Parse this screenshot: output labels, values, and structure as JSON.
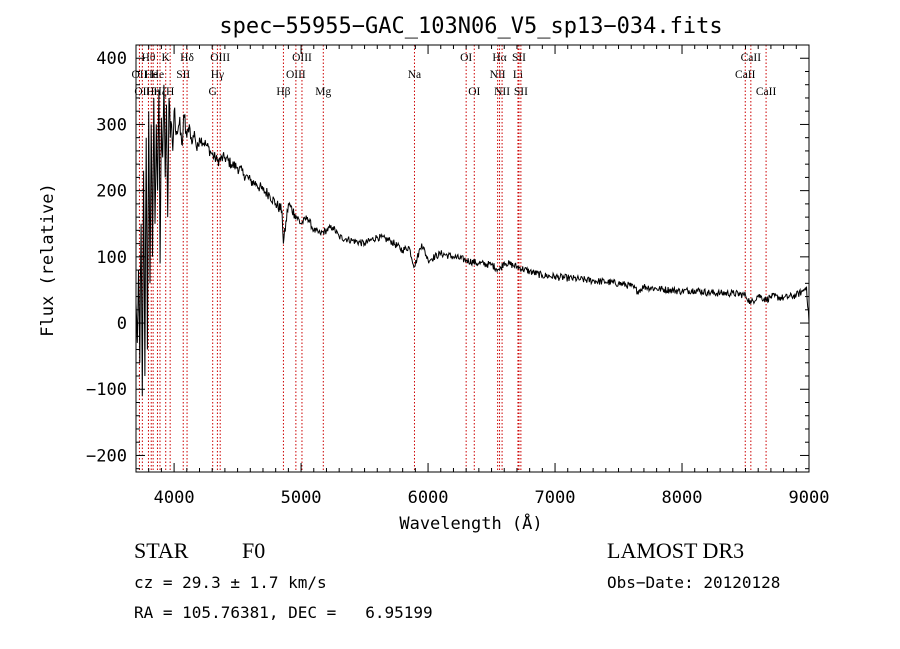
{
  "chart_data": {
    "type": "line",
    "title": "spec−55955−GAC_103N06_V5_sp13−034.fits",
    "xlabel": "Wavelength (Å)",
    "ylabel": "Flux (relative)",
    "xlim": [
      3700,
      9000
    ],
    "ylim": [
      -225,
      420
    ],
    "xticks": [
      {
        "value": 4000,
        "label": "4000"
      },
      {
        "value": 5000,
        "label": "5000"
      },
      {
        "value": 6000,
        "label": "6000"
      },
      {
        "value": 7000,
        "label": "7000"
      },
      {
        "value": 8000,
        "label": "8000"
      },
      {
        "value": 9000,
        "label": "9000"
      }
    ],
    "yticks": [
      {
        "value": -200,
        "label": "−200"
      },
      {
        "value": -100,
        "label": "−100"
      },
      {
        "value": 0,
        "label": "0"
      },
      {
        "value": 100,
        "label": "100"
      },
      {
        "value": 200,
        "label": "200"
      },
      {
        "value": 300,
        "label": "300"
      },
      {
        "value": 400,
        "label": "400"
      }
    ],
    "series": [
      {
        "name": "flux",
        "x": [
          3700,
          3710,
          3720,
          3730,
          3740,
          3750,
          3760,
          3770,
          3780,
          3790,
          3800,
          3810,
          3820,
          3830,
          3840,
          3850,
          3860,
          3870,
          3880,
          3890,
          3900,
          3910,
          3920,
          3930,
          3940,
          3950,
          3960,
          3970,
          3980,
          3990,
          4000,
          4020,
          4040,
          4060,
          4080,
          4100,
          4120,
          4140,
          4160,
          4180,
          4200,
          4250,
          4300,
          4340,
          4400,
          4450,
          4500,
          4550,
          4600,
          4650,
          4700,
          4750,
          4800,
          4850,
          4861,
          4900,
          4950,
          5000,
          5050,
          5100,
          5150,
          5200,
          5250,
          5300,
          5400,
          5500,
          5600,
          5700,
          5800,
          5850,
          5893,
          5950,
          6000,
          6100,
          6200,
          6300,
          6400,
          6500,
          6563,
          6600,
          6700,
          6800,
          6900,
          7000,
          7100,
          7200,
          7300,
          7400,
          7500,
          7600,
          7650,
          7700,
          7800,
          7900,
          8000,
          8100,
          8200,
          8300,
          8400,
          8500,
          8542,
          8600,
          8662,
          8700,
          8800,
          8900,
          8950,
          8980,
          9000
        ],
        "y": [
          30,
          -30,
          80,
          -60,
          150,
          -110,
          230,
          -80,
          280,
          -40,
          320,
          60,
          300,
          100,
          340,
          150,
          300,
          200,
          350,
          90,
          310,
          250,
          360,
          220,
          330,
          160,
          340,
          280,
          300,
          260,
          320,
          290,
          300,
          270,
          310,
          280,
          300,
          270,
          290,
          260,
          280,
          270,
          255,
          245,
          250,
          240,
          235,
          225,
          215,
          210,
          200,
          195,
          180,
          170,
          120,
          180,
          165,
          150,
          160,
          140,
          135,
          140,
          145,
          130,
          125,
          120,
          130,
          125,
          110,
          115,
          85,
          120,
          95,
          105,
          100,
          95,
          90,
          88,
          80,
          92,
          85,
          78,
          72,
          70,
          68,
          66,
          64,
          62,
          60,
          56,
          48,
          55,
          52,
          50,
          48,
          50,
          46,
          45,
          45,
          42,
          30,
          42,
          35,
          40,
          38,
          42,
          48,
          55,
          0
        ]
      }
    ],
    "lines": [
      {
        "wl": 3727,
        "label": "OII",
        "row": 2
      },
      {
        "wl": 3750,
        "label": "OII",
        "row": 3
      },
      {
        "wl": 3798,
        "label": "Hθ",
        "row": 1
      },
      {
        "wl": 3820,
        "label": "He",
        "row": 2
      },
      {
        "wl": 3835,
        "label": "Hη",
        "row": 3
      },
      {
        "wl": 3869,
        "label": "He",
        "row": 2
      },
      {
        "wl": 3889,
        "label": "Hζ",
        "row": 3
      },
      {
        "wl": 3934,
        "label": "K",
        "row": 1
      },
      {
        "wl": 3969,
        "label": "H",
        "row": 3
      },
      {
        "wl": 4072,
        "label": "SII",
        "row": 2
      },
      {
        "wl": 4102,
        "label": "Hδ",
        "row": 1
      },
      {
        "wl": 4304,
        "label": "G",
        "row": 3
      },
      {
        "wl": 4341,
        "label": "Hγ",
        "row": 2
      },
      {
        "wl": 4363,
        "label": "OIII",
        "row": 1
      },
      {
        "wl": 4861,
        "label": "Hβ",
        "row": 3
      },
      {
        "wl": 4959,
        "label": "OIII",
        "row": 2
      },
      {
        "wl": 5007,
        "label": "OIII",
        "row": 1
      },
      {
        "wl": 5175,
        "label": "Mg",
        "row": 3
      },
      {
        "wl": 5893,
        "label": "Na",
        "row": 2
      },
      {
        "wl": 6300,
        "label": "OI",
        "row": 1
      },
      {
        "wl": 6364,
        "label": "OI",
        "row": 3
      },
      {
        "wl": 6548,
        "label": "NII",
        "row": 2
      },
      {
        "wl": 6563,
        "label": "Hα",
        "row": 1
      },
      {
        "wl": 6583,
        "label": "NII",
        "row": 3
      },
      {
        "wl": 6708,
        "label": "Li",
        "row": 2
      },
      {
        "wl": 6716,
        "label": "SII",
        "row": 1
      },
      {
        "wl": 6731,
        "label": "SII",
        "row": 3
      },
      {
        "wl": 8498,
        "label": "CaII",
        "row": 2
      },
      {
        "wl": 8542,
        "label": "CaII",
        "row": 1
      },
      {
        "wl": 8662,
        "label": "CaII",
        "row": 3
      }
    ]
  },
  "info": {
    "object_class": "STAR",
    "subclass": "F0",
    "cz": "cz = 29.3 ± 1.7 km/s",
    "coords": "RA = 105.76381, DEC =   6.95199",
    "survey": "LAMOST DR3",
    "obs_date": "Obs−Date: 20120128"
  },
  "colors": {
    "line": "#000000",
    "marker": "#cc0000",
    "background": "#ffffff"
  }
}
